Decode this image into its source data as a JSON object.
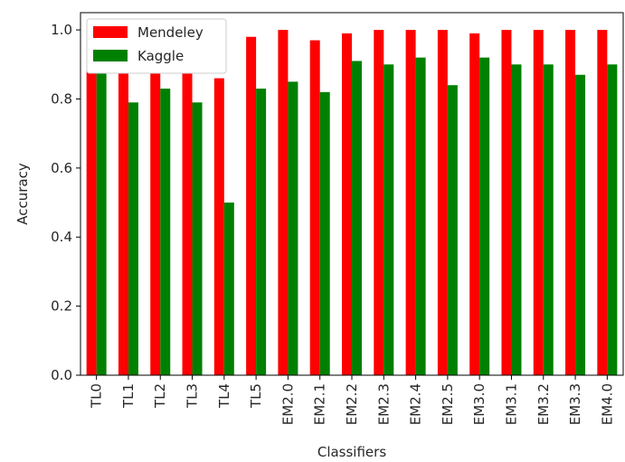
{
  "chart_data": {
    "type": "bar",
    "categories": [
      "TL0",
      "TL1",
      "TL2",
      "TL3",
      "TL4",
      "TL5",
      "EM2.0",
      "EM2.1",
      "EM2.2",
      "EM2.3",
      "EM2.4",
      "EM2.5",
      "EM3.0",
      "EM3.1",
      "EM3.2",
      "EM3.3",
      "EM4.0"
    ],
    "series": [
      {
        "name": "Mendeley",
        "color": "#ff0000",
        "values": [
          0.95,
          0.99,
          0.94,
          0.94,
          0.86,
          0.98,
          1.0,
          0.97,
          0.99,
          1.0,
          1.0,
          1.0,
          0.99,
          1.0,
          1.0,
          1.0,
          1.0
        ]
      },
      {
        "name": "Kaggle",
        "color": "#008000",
        "values": [
          0.93,
          0.79,
          0.83,
          0.79,
          0.5,
          0.83,
          0.85,
          0.82,
          0.91,
          0.9,
          0.92,
          0.84,
          0.92,
          0.9,
          0.9,
          0.87,
          0.9
        ]
      }
    ],
    "xlabel": "Classifiers",
    "ylabel": "Accuracy",
    "ylim": [
      0,
      1.05
    ],
    "yticks": [
      "0.0",
      "0.2",
      "0.4",
      "0.6",
      "0.8",
      "1.0"
    ],
    "legend_position": "top-left",
    "grid": false
  }
}
